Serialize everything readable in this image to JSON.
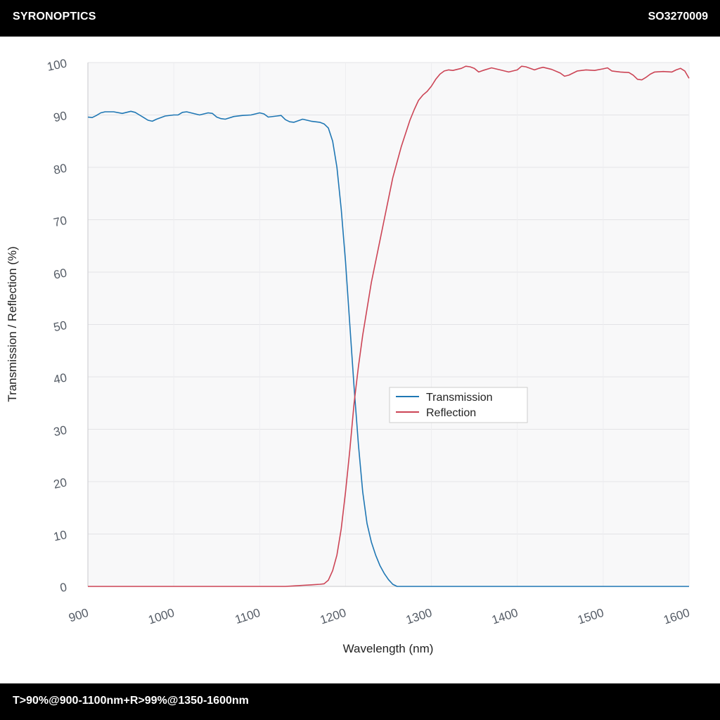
{
  "header": {
    "brand": "SYRONOPTICS",
    "code": "SO3270009"
  },
  "footer": {
    "spec": "T>90%@900-1100nm+R>99%@1350-1600nm"
  },
  "chart_data": {
    "type": "line",
    "xlabel": "Wavelength (nm)",
    "ylabel": "Transmission / Reflection (%)",
    "xlim": [
      900,
      1600
    ],
    "ylim": [
      0,
      100
    ],
    "xticks": [
      900,
      1000,
      1100,
      1200,
      1300,
      1400,
      1500,
      1600
    ],
    "yticks": [
      0,
      10,
      20,
      30,
      40,
      50,
      60,
      70,
      80,
      90,
      100
    ],
    "grid": true,
    "legend_position": "center-right",
    "series": [
      {
        "name": "Transmission",
        "color": "#1f77b4",
        "points": [
          [
            900,
            89.6
          ],
          [
            905,
            89.5
          ],
          [
            910,
            89.9
          ],
          [
            915,
            90.4
          ],
          [
            920,
            90.6
          ],
          [
            930,
            90.6
          ],
          [
            940,
            90.3
          ],
          [
            950,
            90.7
          ],
          [
            955,
            90.5
          ],
          [
            960,
            90.0
          ],
          [
            965,
            89.5
          ],
          [
            970,
            89.0
          ],
          [
            975,
            88.8
          ],
          [
            980,
            89.2
          ],
          [
            990,
            89.8
          ],
          [
            1000,
            90.0
          ],
          [
            1005,
            90.0
          ],
          [
            1010,
            90.5
          ],
          [
            1015,
            90.6
          ],
          [
            1020,
            90.4
          ],
          [
            1030,
            90.0
          ],
          [
            1040,
            90.4
          ],
          [
            1045,
            90.3
          ],
          [
            1050,
            89.6
          ],
          [
            1055,
            89.3
          ],
          [
            1060,
            89.2
          ],
          [
            1070,
            89.7
          ],
          [
            1080,
            89.9
          ],
          [
            1090,
            90.0
          ],
          [
            1100,
            90.4
          ],
          [
            1105,
            90.2
          ],
          [
            1110,
            89.6
          ],
          [
            1120,
            89.8
          ],
          [
            1125,
            89.9
          ],
          [
            1130,
            89.1
          ],
          [
            1135,
            88.7
          ],
          [
            1140,
            88.6
          ],
          [
            1150,
            89.2
          ],
          [
            1160,
            88.8
          ],
          [
            1170,
            88.6
          ],
          [
            1175,
            88.3
          ],
          [
            1180,
            87.5
          ],
          [
            1185,
            85.0
          ],
          [
            1190,
            80.0
          ],
          [
            1195,
            72.0
          ],
          [
            1200,
            62.0
          ],
          [
            1205,
            50.0
          ],
          [
            1210,
            38.0
          ],
          [
            1215,
            27.0
          ],
          [
            1220,
            18.0
          ],
          [
            1225,
            12.0
          ],
          [
            1230,
            8.5
          ],
          [
            1235,
            6.0
          ],
          [
            1240,
            4.0
          ],
          [
            1245,
            2.5
          ],
          [
            1250,
            1.3
          ],
          [
            1255,
            0.4
          ],
          [
            1260,
            0.0
          ],
          [
            1300,
            0.0
          ],
          [
            1400,
            0.0
          ],
          [
            1500,
            0.0
          ],
          [
            1600,
            0.0
          ]
        ]
      },
      {
        "name": "Reflection",
        "color": "#cc4455",
        "points": [
          [
            900,
            0.0
          ],
          [
            1000,
            0.0
          ],
          [
            1100,
            0.0
          ],
          [
            1130,
            0.0
          ],
          [
            1140,
            0.1
          ],
          [
            1150,
            0.2
          ],
          [
            1160,
            0.3
          ],
          [
            1170,
            0.4
          ],
          [
            1175,
            0.5
          ],
          [
            1180,
            1.2
          ],
          [
            1185,
            3.0
          ],
          [
            1190,
            6.0
          ],
          [
            1195,
            11.0
          ],
          [
            1200,
            18.0
          ],
          [
            1205,
            26.0
          ],
          [
            1210,
            35.0
          ],
          [
            1215,
            42.0
          ],
          [
            1220,
            48.0
          ],
          [
            1225,
            53.0
          ],
          [
            1230,
            58.0
          ],
          [
            1235,
            62.0
          ],
          [
            1240,
            66.0
          ],
          [
            1245,
            70.0
          ],
          [
            1250,
            74.0
          ],
          [
            1255,
            78.0
          ],
          [
            1260,
            81.0
          ],
          [
            1265,
            84.0
          ],
          [
            1270,
            86.5
          ],
          [
            1275,
            89.0
          ],
          [
            1280,
            91.0
          ],
          [
            1285,
            92.8
          ],
          [
            1290,
            93.8
          ],
          [
            1295,
            94.5
          ],
          [
            1300,
            95.5
          ],
          [
            1305,
            96.8
          ],
          [
            1310,
            97.8
          ],
          [
            1315,
            98.4
          ],
          [
            1320,
            98.6
          ],
          [
            1325,
            98.5
          ],
          [
            1330,
            98.7
          ],
          [
            1335,
            98.9
          ],
          [
            1340,
            99.3
          ],
          [
            1345,
            99.2
          ],
          [
            1350,
            98.9
          ],
          [
            1355,
            98.2
          ],
          [
            1360,
            98.5
          ],
          [
            1370,
            99.0
          ],
          [
            1380,
            98.6
          ],
          [
            1385,
            98.4
          ],
          [
            1390,
            98.2
          ],
          [
            1400,
            98.6
          ],
          [
            1405,
            99.3
          ],
          [
            1410,
            99.2
          ],
          [
            1420,
            98.6
          ],
          [
            1425,
            98.9
          ],
          [
            1430,
            99.1
          ],
          [
            1440,
            98.7
          ],
          [
            1450,
            98.0
          ],
          [
            1455,
            97.4
          ],
          [
            1460,
            97.6
          ],
          [
            1465,
            98.0
          ],
          [
            1470,
            98.4
          ],
          [
            1480,
            98.6
          ],
          [
            1490,
            98.5
          ],
          [
            1500,
            98.8
          ],
          [
            1505,
            99.0
          ],
          [
            1510,
            98.4
          ],
          [
            1520,
            98.2
          ],
          [
            1530,
            98.1
          ],
          [
            1535,
            97.6
          ],
          [
            1540,
            96.8
          ],
          [
            1545,
            96.7
          ],
          [
            1550,
            97.2
          ],
          [
            1555,
            97.8
          ],
          [
            1560,
            98.2
          ],
          [
            1570,
            98.3
          ],
          [
            1580,
            98.2
          ],
          [
            1585,
            98.6
          ],
          [
            1590,
            98.9
          ],
          [
            1595,
            98.4
          ],
          [
            1600,
            97.0
          ]
        ]
      }
    ]
  }
}
